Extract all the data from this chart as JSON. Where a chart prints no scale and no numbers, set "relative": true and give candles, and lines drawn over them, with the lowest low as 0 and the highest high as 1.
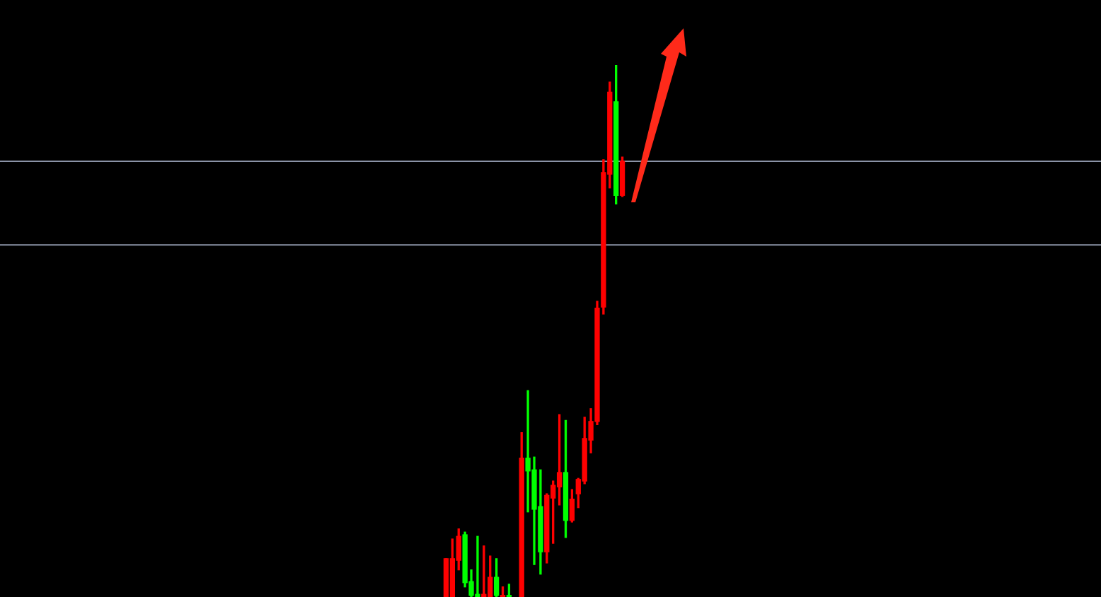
{
  "chart_data": {
    "type": "candlestick",
    "relative": true,
    "categories": [
      null,
      null,
      null,
      null,
      null,
      null,
      null,
      null,
      null,
      null,
      null,
      null,
      null,
      null,
      null,
      null,
      null,
      null,
      null,
      null,
      null,
      null,
      null,
      null,
      null,
      null,
      null,
      null,
      null
    ],
    "ohlc": [
      [
        0,
        0.072,
        0,
        0.072
      ],
      [
        0,
        0.109,
        0,
        0.072
      ],
      [
        0.069,
        0.128,
        0.051,
        0.114
      ],
      [
        0.117,
        0.122,
        0.019,
        0.027
      ],
      [
        0.029,
        0.051,
        0,
        0.003
      ],
      [
        0.005,
        0.114,
        0,
        0
      ],
      [
        0,
        0.096,
        0,
        0.005
      ],
      [
        0,
        0.077,
        0,
        0.037
      ],
      [
        0.037,
        0.072,
        0,
        0.003
      ],
      [
        0,
        0.019,
        0,
        0.003
      ],
      [
        0.003,
        0.024,
        0,
        0
      ],
      null,
      [
        0,
        0.309,
        0,
        0.261
      ],
      [
        0.261,
        0.388,
        0.16,
        0.237
      ],
      [
        0.239,
        0.263,
        0.061,
        0.165
      ],
      [
        0.17,
        0.239,
        0.043,
        0.085
      ],
      [
        0.085,
        0.194,
        0.064,
        0.191
      ],
      [
        0.186,
        0.218,
        0.101,
        0.21
      ],
      [
        0.207,
        0.343,
        0.173,
        0.234
      ],
      [
        0.234,
        0.332,
        0.112,
        0.144
      ],
      [
        0.144,
        0.202,
        0.141,
        0.184
      ],
      [
        0.194,
        0.223,
        0.168,
        0.221
      ],
      [
        0.218,
        0.338,
        0.213,
        0.298
      ],
      [
        0.295,
        0.354,
        0.271,
        0.33
      ],
      [
        0.33,
        0.556,
        0.324,
        0.543
      ],
      [
        0.545,
        0.822,
        0.532,
        0.798
      ],
      [
        0.795,
        0.968,
        0.769,
        0.949
      ],
      [
        0.931,
        1,
        0.739,
        0.755
      ],
      [
        0.755,
        0.827,
        0.753,
        0.819
      ]
    ],
    "colors": [
      "#ff0000",
      "#ff0000",
      "#ff0000",
      "#00ff00",
      "#00ff00",
      "#00ff00",
      "#ff0000",
      "#ff0000",
      "#00ff00",
      "#ff0000",
      "#00ff00",
      null,
      "#ff0000",
      "#00ff00",
      "#00ff00",
      "#00ff00",
      "#ff0000",
      "#ff0000",
      "#ff0000",
      "#00ff00",
      "#ff0000",
      "#ff0000",
      "#ff0000",
      "#ff0000",
      "#ff0000",
      "#ff0000",
      "#ff0000",
      "#00ff00",
      "#ff0000"
    ],
    "ref_lines": [
      {
        "axis": "y",
        "value": 0.819,
        "color": "#8a93a6"
      },
      {
        "axis": "y",
        "value": 0.662,
        "color": "#8a93a6"
      }
    ],
    "legend": false
  }
}
